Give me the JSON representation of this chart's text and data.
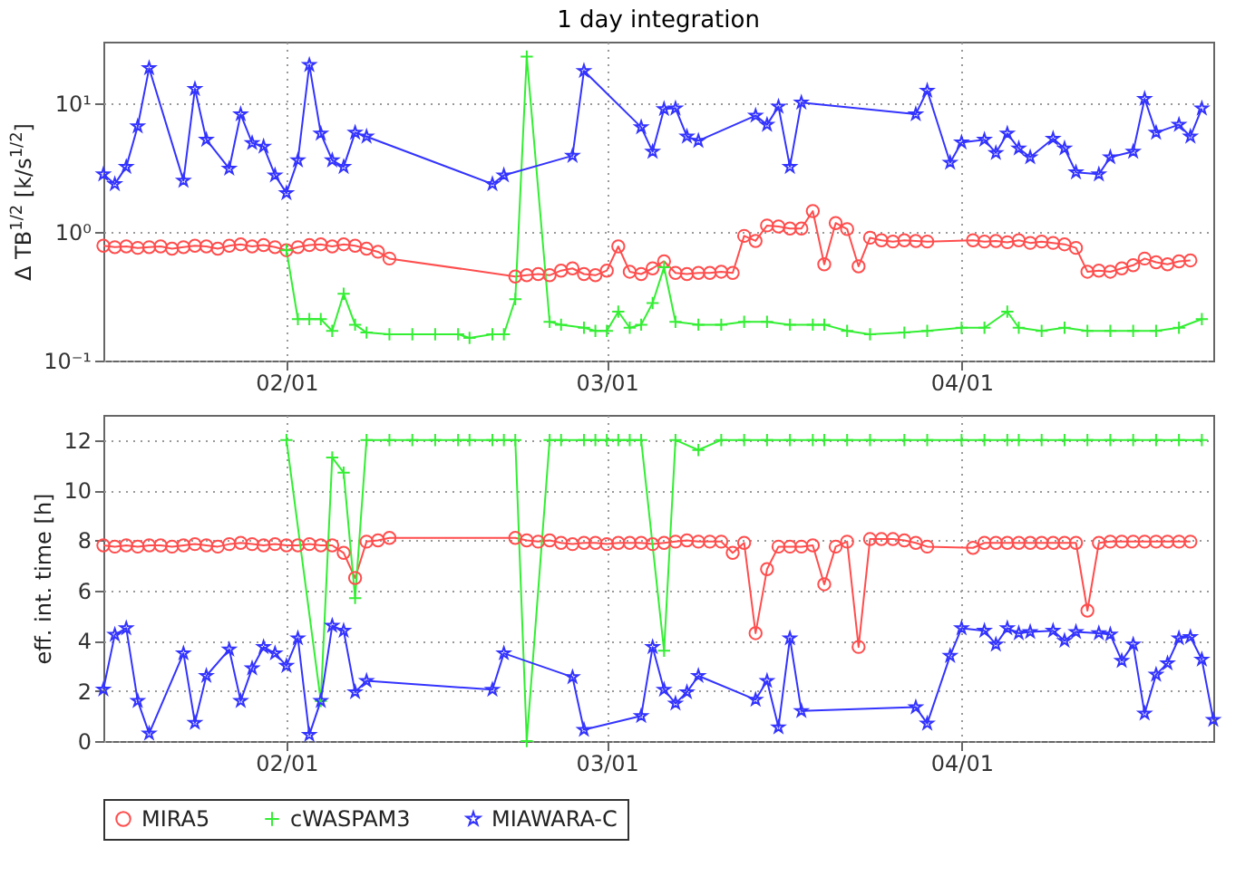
{
  "chart_data": [
    {
      "type": "line",
      "title": "1 day integration",
      "ylabel": "Δ TB$^{1/2}$ [k/s$^{1/2}$]",
      "log": "y",
      "grid": true,
      "xlim": [
        "--01-16",
        "--04-23"
      ],
      "xticks": [
        {
          "value": "--02-01",
          "label": "02/01"
        },
        {
          "value": "--03-01",
          "label": "03/01"
        },
        {
          "value": "--04-01",
          "label": "04/01"
        }
      ],
      "ylim": [
        0.1,
        30
      ],
      "yticks": [
        {
          "value": 0.1,
          "label": "10⁻¹"
        },
        {
          "value": 1,
          "label": "10⁰"
        },
        {
          "value": 10,
          "label": "10¹"
        }
      ],
      "series": [
        {
          "color": "#ff4d4d",
          "marker": "circle",
          "x": [
            "--01-16",
            "--01-17",
            "--01-18",
            "--01-19",
            "--01-20",
            "--01-21",
            "--01-22",
            "--01-23",
            "--01-24",
            "--01-25",
            "--01-26",
            "--01-27",
            "--01-28",
            "--01-29",
            "--01-30",
            "--01-31",
            "--02-01",
            "--02-02",
            "--02-03",
            "--02-04",
            "--02-05",
            "--02-06",
            "--02-07",
            "--02-08",
            "--02-09",
            "--02-10",
            "--02-21",
            "--02-22",
            "--02-23",
            "--02-24",
            "--02-25",
            "--02-26",
            "--02-27",
            "--02-28",
            "--03-01",
            "--03-02",
            "--03-03",
            "--03-04",
            "--03-05",
            "--03-06",
            "--03-07",
            "--03-08",
            "--03-09",
            "--03-10",
            "--03-11",
            "--03-12",
            "--03-13",
            "--03-14",
            "--03-15",
            "--03-16",
            "--03-17",
            "--03-18",
            "--03-19",
            "--03-20",
            "--03-21",
            "--03-22",
            "--03-23",
            "--03-24",
            "--03-25",
            "--03-26",
            "--03-27",
            "--03-28",
            "--03-29",
            "--04-02",
            "--04-03",
            "--04-04",
            "--04-05",
            "--04-06",
            "--04-07",
            "--04-08",
            "--04-09",
            "--04-10",
            "--04-11",
            "--04-12",
            "--04-13",
            "--04-14",
            "--04-15",
            "--04-16",
            "--04-17",
            "--04-18",
            "--04-19",
            "--04-20",
            "--04-21"
          ],
          "values": [
            0.78,
            0.76,
            0.77,
            0.75,
            0.76,
            0.77,
            0.74,
            0.76,
            0.78,
            0.77,
            0.74,
            0.78,
            0.8,
            0.77,
            0.79,
            0.76,
            0.72,
            0.76,
            0.79,
            0.8,
            0.77,
            0.8,
            0.78,
            0.74,
            0.7,
            0.62,
            0.45,
            0.46,
            0.47,
            0.46,
            0.5,
            0.52,
            0.47,
            0.46,
            0.5,
            0.77,
            0.49,
            0.47,
            0.52,
            0.59,
            0.48,
            0.47,
            0.48,
            0.48,
            0.49,
            0.48,
            0.93,
            0.85,
            1.12,
            1.1,
            1.06,
            1.06,
            1.45,
            0.56,
            1.17,
            1.05,
            0.54,
            0.9,
            0.86,
            0.84,
            0.86,
            0.85,
            0.84,
            0.86,
            0.84,
            0.85,
            0.83,
            0.86,
            0.82,
            0.84,
            0.82,
            0.8,
            0.75,
            0.49,
            0.5,
            0.49,
            0.52,
            0.55,
            0.62,
            0.58,
            0.56,
            0.59,
            0.6
          ]
        },
        {
          "color": "#33ee33",
          "marker": "cross",
          "x": [
            "--02-01",
            "--02-02",
            "--02-03",
            "--02-04",
            "--02-05",
            "--02-06",
            "--02-07",
            "--02-08",
            "--02-10",
            "--02-12",
            "--02-14",
            "--02-16",
            "--02-17",
            "--02-19",
            "--02-20",
            "--02-21",
            "--02-22",
            "--02-24",
            "--02-25",
            "--02-27",
            "--02-28",
            "--03-01",
            "--03-02",
            "--03-03",
            "--03-04",
            "--03-05",
            "--03-06",
            "--03-07",
            "--03-09",
            "--03-11",
            "--03-13",
            "--03-15",
            "--03-17",
            "--03-19",
            "--03-20",
            "--03-22",
            "--03-24",
            "--03-27",
            "--03-29",
            "--04-01",
            "--04-03",
            "--04-05",
            "--04-06",
            "--04-08",
            "--04-10",
            "--04-12",
            "--04-14",
            "--04-16",
            "--04-18",
            "--04-20",
            "--04-22"
          ],
          "values": [
            0.72,
            0.21,
            0.21,
            0.21,
            0.17,
            0.33,
            0.19,
            0.165,
            0.16,
            0.16,
            0.16,
            0.16,
            0.15,
            0.16,
            0.16,
            0.3,
            23,
            0.2,
            0.19,
            0.18,
            0.17,
            0.17,
            0.24,
            0.18,
            0.19,
            0.28,
            0.53,
            0.2,
            0.19,
            0.19,
            0.2,
            0.2,
            0.19,
            0.19,
            0.19,
            0.17,
            0.16,
            0.165,
            0.17,
            0.18,
            0.18,
            0.24,
            0.18,
            0.17,
            0.18,
            0.17,
            0.17,
            0.17,
            0.17,
            0.18,
            0.21
          ]
        },
        {
          "color": "#3333ff",
          "marker": "star",
          "x": [
            "--01-16",
            "--01-17",
            "--01-18",
            "--01-19",
            "--01-20",
            "--01-23",
            "--01-24",
            "--01-25",
            "--01-27",
            "--01-28",
            "--01-29",
            "--01-30",
            "--01-31",
            "--02-01",
            "--02-02",
            "--02-03",
            "--02-04",
            "--02-05",
            "--02-06",
            "--02-07",
            "--02-08",
            "--02-19",
            "--02-20",
            "--02-26",
            "--02-27",
            "--03-04",
            "--03-05",
            "--03-06",
            "--03-07",
            "--03-08",
            "--03-09",
            "--03-14",
            "--03-15",
            "--03-16",
            "--03-17",
            "--03-18",
            "--03-28",
            "--03-29",
            "--03-31",
            "--04-01",
            "--04-03",
            "--04-04",
            "--04-05",
            "--04-06",
            "--04-07",
            "--04-09",
            "--04-10",
            "--04-11",
            "--04-13",
            "--04-14",
            "--04-16",
            "--04-17",
            "--04-18",
            "--04-20",
            "--04-21",
            "--04-22"
          ],
          "values": [
            2.8,
            2.35,
            3.2,
            6.6,
            18.7,
            2.5,
            12.9,
            5.2,
            3.1,
            8.2,
            4.9,
            4.6,
            2.75,
            2.0,
            3.6,
            19.8,
            5.8,
            3.6,
            3.2,
            5.9,
            5.5,
            2.35,
            2.75,
            3.9,
            17.8,
            6.5,
            4.2,
            9.0,
            9.1,
            5.5,
            5.1,
            8.0,
            6.8,
            9.4,
            3.2,
            10.1,
            8.2,
            12.5,
            3.45,
            4.95,
            5.2,
            4.1,
            5.8,
            4.45,
            3.8,
            5.3,
            4.45,
            2.9,
            2.8,
            3.8,
            4.2,
            10.8,
            5.9,
            6.8,
            5.5,
            9.1
          ]
        }
      ]
    },
    {
      "type": "line",
      "ylabel": "eff. int. time [h]",
      "grid": true,
      "legend": "bottom",
      "xlim": [
        "--01-16",
        "--04-23"
      ],
      "xticks": [
        {
          "value": "--02-01",
          "label": "02/01"
        },
        {
          "value": "--03-01",
          "label": "03/01"
        },
        {
          "value": "--04-01",
          "label": "04/01"
        }
      ],
      "ylim": [
        0,
        13
      ],
      "yticks": [
        0,
        2,
        4,
        6,
        8,
        10,
        12
      ],
      "series": [
        {
          "name": "MIRA5",
          "color": "#ff4d4d",
          "marker": "circle",
          "x": [
            "--01-16",
            "--01-17",
            "--01-18",
            "--01-19",
            "--01-20",
            "--01-21",
            "--01-22",
            "--01-23",
            "--01-24",
            "--01-25",
            "--01-26",
            "--01-27",
            "--01-28",
            "--01-29",
            "--01-30",
            "--01-31",
            "--02-01",
            "--02-02",
            "--02-03",
            "--02-04",
            "--02-05",
            "--02-06",
            "--02-07",
            "--02-08",
            "--02-09",
            "--02-10",
            "--02-21",
            "--02-22",
            "--02-23",
            "--02-24",
            "--02-25",
            "--02-26",
            "--02-27",
            "--02-28",
            "--03-01",
            "--03-02",
            "--03-03",
            "--03-04",
            "--03-05",
            "--03-06",
            "--03-07",
            "--03-08",
            "--03-09",
            "--03-10",
            "--03-11",
            "--03-12",
            "--03-13",
            "--03-14",
            "--03-15",
            "--03-16",
            "--03-17",
            "--03-18",
            "--03-19",
            "--03-20",
            "--03-21",
            "--03-22",
            "--03-23",
            "--03-24",
            "--03-25",
            "--03-26",
            "--03-27",
            "--03-28",
            "--03-29",
            "--04-02",
            "--04-03",
            "--04-04",
            "--04-05",
            "--04-06",
            "--04-07",
            "--04-08",
            "--04-09",
            "--04-10",
            "--04-11",
            "--04-12",
            "--04-13",
            "--04-14",
            "--04-15",
            "--04-16",
            "--04-17",
            "--04-18",
            "--04-19",
            "--04-20",
            "--04-21"
          ],
          "values": [
            7.8,
            7.75,
            7.8,
            7.75,
            7.8,
            7.8,
            7.75,
            7.8,
            7.85,
            7.8,
            7.75,
            7.85,
            7.9,
            7.85,
            7.8,
            7.85,
            7.8,
            7.8,
            7.85,
            7.8,
            7.8,
            7.5,
            6.5,
            7.95,
            8.0,
            8.1,
            8.1,
            8.0,
            7.95,
            8.0,
            7.9,
            7.85,
            7.9,
            7.9,
            7.85,
            7.9,
            7.9,
            7.9,
            7.85,
            7.9,
            7.95,
            8.0,
            7.95,
            7.95,
            7.95,
            7.5,
            7.9,
            4.3,
            6.85,
            7.75,
            7.75,
            7.75,
            7.8,
            6.25,
            7.75,
            7.95,
            3.75,
            8.05,
            8.05,
            8.05,
            8.0,
            7.9,
            7.75,
            7.7,
            7.9,
            7.9,
            7.9,
            7.9,
            7.9,
            7.9,
            7.9,
            7.9,
            7.9,
            5.2,
            7.9,
            7.95,
            7.95,
            7.95,
            7.95,
            7.95,
            7.95,
            7.95,
            7.95
          ]
        },
        {
          "name": "cWASPAM3",
          "color": "#33ee33",
          "marker": "cross",
          "x": [
            "--02-01",
            "--02-04",
            "--02-05",
            "--02-06",
            "--02-07",
            "--02-08",
            "--02-10",
            "--02-12",
            "--02-14",
            "--02-16",
            "--02-17",
            "--02-19",
            "--02-20",
            "--02-21",
            "--02-22",
            "--02-24",
            "--02-25",
            "--02-27",
            "--02-28",
            "--03-01",
            "--03-02",
            "--03-03",
            "--03-04",
            "--03-06",
            "--03-07",
            "--03-09",
            "--03-11",
            "--03-13",
            "--03-15",
            "--03-17",
            "--03-19",
            "--03-20",
            "--03-22",
            "--03-24",
            "--03-27",
            "--03-29",
            "--04-01",
            "--04-03",
            "--04-05",
            "--04-06",
            "--04-08",
            "--04-10",
            "--04-12",
            "--04-14",
            "--04-16",
            "--04-18",
            "--04-20",
            "--04-22"
          ],
          "values": [
            12,
            1.6,
            11.3,
            10.7,
            5.7,
            12,
            12,
            12,
            12,
            12,
            12,
            12,
            12,
            12,
            0,
            12,
            12,
            12,
            12,
            12,
            12,
            12,
            12,
            3.6,
            12,
            11.6,
            12,
            12,
            12,
            12,
            12,
            12,
            12,
            12,
            12,
            12,
            12,
            12,
            12,
            12,
            12,
            12,
            12,
            12,
            12,
            12,
            12,
            12
          ]
        },
        {
          "name": "MIAWARA-C",
          "color": "#3333ff",
          "marker": "star",
          "x": [
            "--01-16",
            "--01-17",
            "--01-18",
            "--01-19",
            "--01-20",
            "--01-23",
            "--01-24",
            "--01-25",
            "--01-27",
            "--01-28",
            "--01-29",
            "--01-30",
            "--01-31",
            "--02-01",
            "--02-02",
            "--02-03",
            "--02-04",
            "--02-05",
            "--02-06",
            "--02-07",
            "--02-08",
            "--02-19",
            "--02-20",
            "--02-26",
            "--02-27",
            "--03-04",
            "--03-05",
            "--03-06",
            "--03-07",
            "--03-08",
            "--03-09",
            "--03-14",
            "--03-15",
            "--03-16",
            "--03-17",
            "--03-18",
            "--03-28",
            "--03-29",
            "--03-31",
            "--04-01",
            "--04-03",
            "--04-04",
            "--04-05",
            "--04-06",
            "--04-07",
            "--04-09",
            "--04-10",
            "--04-11",
            "--04-13",
            "--04-14",
            "--04-15",
            "--04-16",
            "--04-17",
            "--04-18",
            "--04-19",
            "--04-20",
            "--04-21",
            "--04-22",
            "--04-23"
          ],
          "values": [
            2.06,
            4.24,
            4.5,
            1.6,
            0.3,
            3.5,
            0.73,
            2.6,
            3.65,
            1.6,
            2.9,
            3.75,
            3.5,
            3.0,
            4.1,
            0.25,
            1.6,
            4.6,
            4.4,
            1.95,
            2.4,
            2.05,
            3.5,
            2.55,
            0.45,
            1.0,
            3.75,
            2.05,
            1.5,
            1.95,
            2.6,
            1.65,
            2.4,
            0.55,
            4.1,
            1.2,
            1.35,
            0.7,
            3.4,
            4.5,
            4.4,
            3.85,
            4.5,
            4.3,
            4.35,
            4.4,
            4.0,
            4.35,
            4.3,
            4.25,
            3.2,
            3.85,
            1.1,
            2.65,
            3.1,
            4.1,
            4.15,
            3.25,
            0.85
          ]
        }
      ]
    }
  ]
}
